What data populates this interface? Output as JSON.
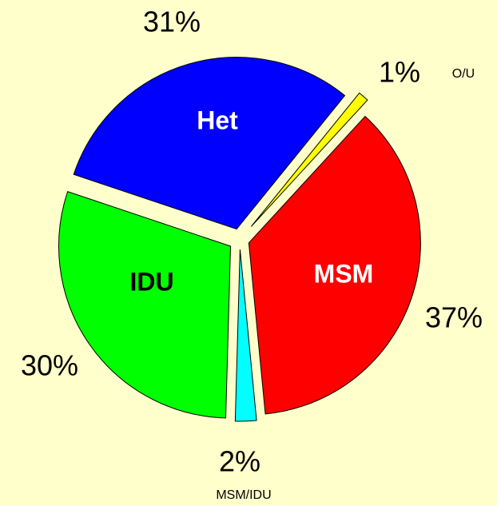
{
  "chart_data": {
    "type": "pie",
    "categories": [
      "MSM",
      "MSM/IDU",
      "IDU",
      "Het",
      "O/U"
    ],
    "values": [
      37,
      2,
      30,
      31,
      1
    ],
    "value_labels": [
      "37%",
      "2%",
      "30%",
      "31%",
      "1%"
    ],
    "colors": [
      "#ff0000",
      "#00ffff",
      "#00ff00",
      "#0000ff",
      "#ffff00"
    ],
    "label_colors": [
      "#ffffff",
      "#000000",
      "#000000",
      "#ffffff",
      "#000000"
    ]
  }
}
